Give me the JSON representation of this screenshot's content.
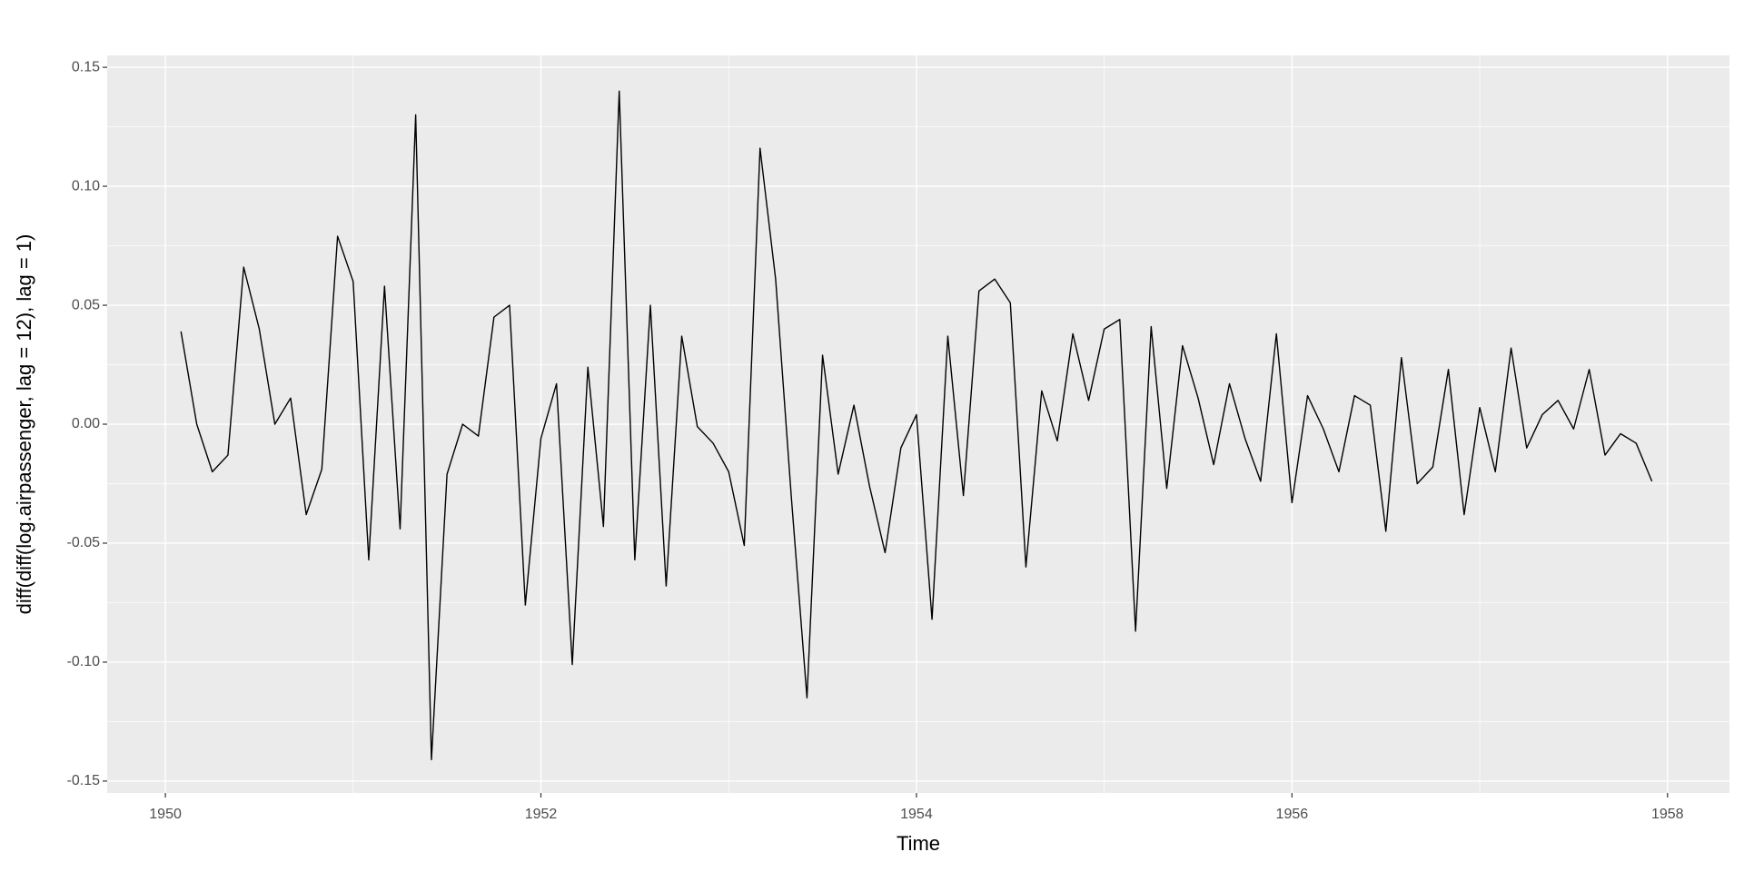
{
  "chart_data": {
    "type": "line",
    "xlabel": "Time",
    "ylabel": "diff(diff(log.airpassenger, lag = 12), lag = 1)",
    "color": "#000000",
    "grid": true,
    "xlim": [
      1949.69,
      1958.33
    ],
    "ylim": [
      -0.155,
      0.155
    ],
    "xticks": [
      1950,
      1952,
      1954,
      1956,
      1958
    ],
    "yticks": [
      {
        "value": -0.15,
        "label": "-0.15"
      },
      {
        "value": -0.1,
        "label": "-0.10"
      },
      {
        "value": -0.05,
        "label": "-0.05"
      },
      {
        "value": 0,
        "label": "0.00"
      },
      {
        "value": 0.05,
        "label": "0.05"
      },
      {
        "value": 0.1,
        "label": "0.10"
      },
      {
        "value": 0.15,
        "label": "0.15"
      }
    ],
    "x": [
      1950.083,
      1950.167,
      1950.25,
      1950.333,
      1950.417,
      1950.5,
      1950.583,
      1950.667,
      1950.75,
      1950.833,
      1950.917,
      1951,
      1951.083,
      1951.167,
      1951.25,
      1951.333,
      1951.417,
      1951.5,
      1951.583,
      1951.667,
      1951.75,
      1951.833,
      1951.917,
      1952,
      1952.083,
      1952.167,
      1952.25,
      1952.333,
      1952.417,
      1952.5,
      1952.583,
      1952.667,
      1952.75,
      1952.833,
      1952.917,
      1953,
      1953.083,
      1953.167,
      1953.25,
      1953.333,
      1953.417,
      1953.5,
      1953.583,
      1953.667,
      1953.75,
      1953.833,
      1953.917,
      1954,
      1954.083,
      1954.167,
      1954.25,
      1954.333,
      1954.417,
      1954.5,
      1954.583,
      1954.667,
      1954.75,
      1954.833,
      1954.917,
      1955,
      1955.083,
      1955.167,
      1955.25,
      1955.333,
      1955.417,
      1955.5,
      1955.583,
      1955.667,
      1955.75,
      1955.833,
      1955.917,
      1956,
      1956.083,
      1956.167,
      1956.25,
      1956.333,
      1956.417,
      1956.5,
      1956.583,
      1956.667,
      1956.75,
      1956.833,
      1956.917,
      1957,
      1957.083,
      1957.167,
      1957.25,
      1957.333,
      1957.417,
      1957.5,
      1957.583,
      1957.667,
      1957.75,
      1957.833,
      1957.917
    ],
    "values": [
      0.039,
      0.0,
      -0.02,
      -0.013,
      0.066,
      0.04,
      0.0,
      0.011,
      -0.038,
      -0.019,
      0.079,
      0.06,
      -0.057,
      0.058,
      -0.044,
      0.13,
      -0.141,
      -0.021,
      0.0,
      -0.005,
      0.045,
      0.05,
      -0.076,
      -0.006,
      0.017,
      -0.101,
      0.024,
      -0.043,
      0.14,
      -0.057,
      0.05,
      -0.068,
      0.037,
      -0.001,
      -0.008,
      -0.02,
      -0.051,
      0.116,
      0.061,
      -0.03,
      -0.115,
      0.029,
      -0.021,
      0.008,
      -0.026,
      -0.054,
      -0.01,
      0.004,
      -0.082,
      0.037,
      -0.03,
      0.056,
      0.061,
      0.051,
      -0.06,
      0.014,
      -0.007,
      0.038,
      0.01,
      0.04,
      0.044,
      -0.087,
      0.041,
      -0.027,
      0.033,
      0.011,
      -0.017,
      0.017,
      -0.006,
      -0.024,
      0.038,
      -0.033,
      0.012,
      -0.002,
      -0.02,
      0.012,
      0.008,
      -0.045,
      0.028,
      -0.025,
      -0.018,
      0.023,
      -0.038,
      0.007,
      -0.02,
      0.032,
      -0.01,
      0.004,
      0.01,
      -0.002,
      0.023,
      -0.013,
      -0.004,
      -0.008,
      -0.024
    ]
  }
}
